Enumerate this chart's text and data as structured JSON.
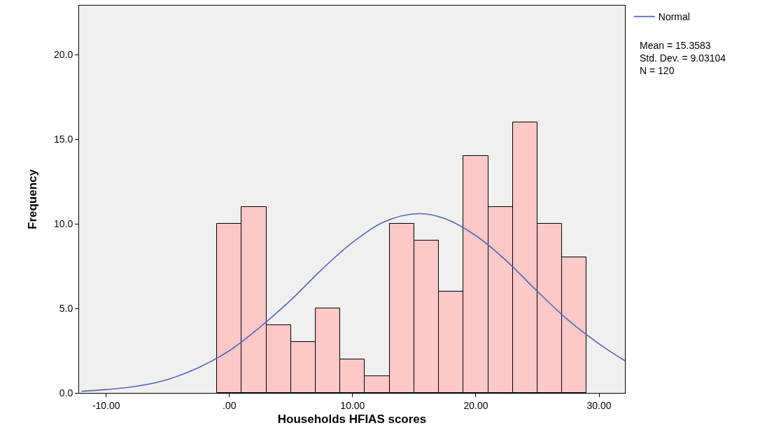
{
  "chart_data": {
    "type": "histogram",
    "xlabel": "Households HFIAS scores",
    "ylabel": "Frequency",
    "bins": [
      -1,
      1,
      3,
      5,
      7,
      9,
      11,
      13,
      15,
      17,
      19,
      21,
      23,
      25,
      27,
      29
    ],
    "values": [
      10,
      11,
      4,
      3,
      5,
      2,
      1,
      10,
      9,
      6,
      14,
      11,
      16,
      10,
      8
    ],
    "color": "#fcc8c8",
    "series": [
      {
        "name": "Normal",
        "type": "line",
        "color": "#5466b8",
        "x": [
          -12,
          -10,
          -7.5,
          -5,
          -2.5,
          0,
          2.5,
          5,
          7.5,
          10,
          12.5,
          15.36,
          17.5,
          20,
          22.5,
          25,
          27.5,
          30,
          32.1
        ],
        "values": [
          0.1,
          0.2,
          0.4,
          0.8,
          1.5,
          2.5,
          3.9,
          5.5,
          7.3,
          8.9,
          10.1,
          10.6,
          10.3,
          9.3,
          7.8,
          6.0,
          4.3,
          2.9,
          1.9
        ]
      }
    ],
    "xlim": [
      -12.2,
      32.1
    ],
    "xticks": [
      {
        "value": -10,
        "label": "-10.00"
      },
      {
        "value": 0,
        "label": ".00"
      },
      {
        "value": 10,
        "label": "10.00"
      },
      {
        "value": 20,
        "label": "20.00"
      },
      {
        "value": 30,
        "label": "30.00"
      }
    ],
    "ylim": [
      0,
      22.9
    ],
    "yticks": [
      {
        "value": 0,
        "label": "0.0"
      },
      {
        "value": 5,
        "label": "5.0"
      },
      {
        "value": 10,
        "label": "10.0"
      },
      {
        "value": 15,
        "label": "15.0"
      },
      {
        "value": 20,
        "label": "20.0"
      }
    ],
    "annotations": [
      "Mean = 15.3583\nStd. Dev. = 9.03104\nN = 120"
    ],
    "grid": false,
    "legend": "top right"
  }
}
